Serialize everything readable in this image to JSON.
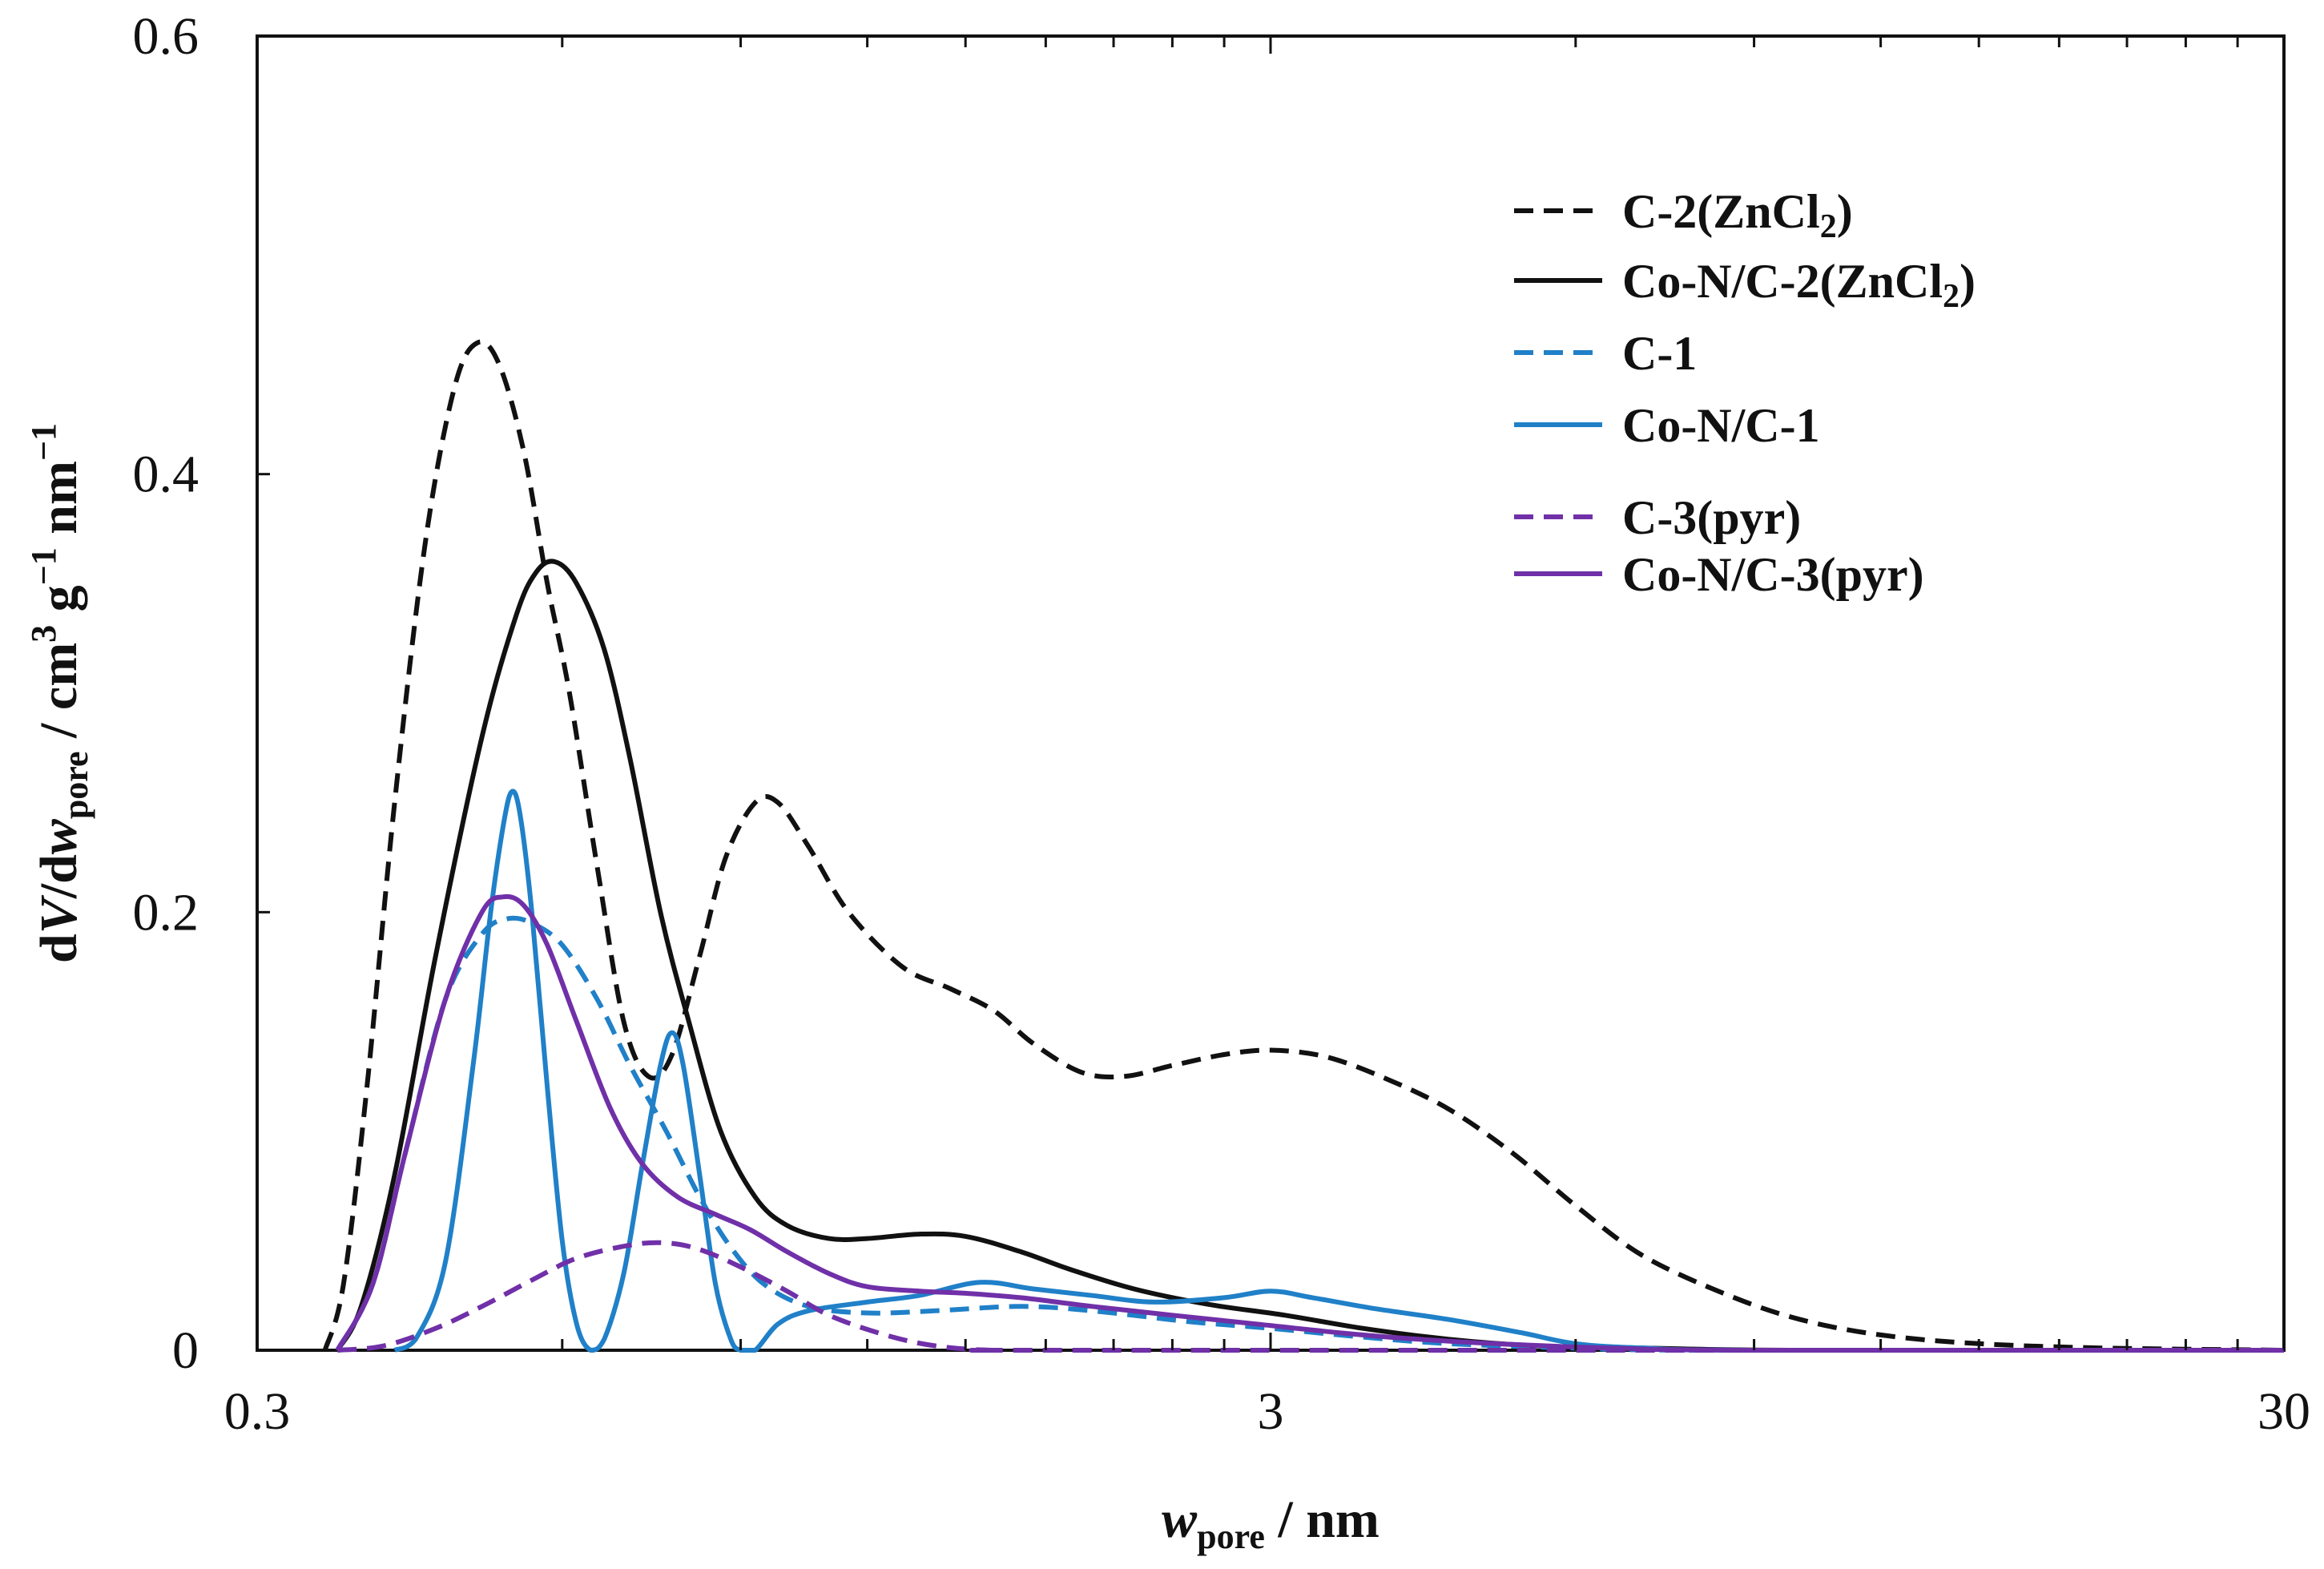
{
  "chart_data": {
    "type": "line",
    "title": "",
    "xscale": "log",
    "xlim": [
      0.3,
      30
    ],
    "ylim": [
      0,
      0.6
    ],
    "xticks": [
      {
        "value": 0.3,
        "label": "0.3"
      },
      {
        "value": 3,
        "label": "3"
      },
      {
        "value": 30,
        "label": "30"
      }
    ],
    "yticks": [
      {
        "value": 0,
        "label": "0"
      },
      {
        "value": 0.2,
        "label": "0.2"
      },
      {
        "value": 0.4,
        "label": "0.4"
      },
      {
        "value": 0.6,
        "label": "0.6"
      }
    ],
    "xlabel": {
      "main": "w",
      "sub": "pore",
      "rest": " / nm"
    },
    "ylabel": {
      "a": "d",
      "b": "V",
      "c": "/d",
      "d": "w",
      "sub": "pore",
      "e": " / cm",
      "sup1": "3",
      "f": " g",
      "sup2": "−1",
      "g": " nm",
      "sup3": "−1"
    },
    "legend_position": "top-right",
    "series": [
      {
        "name": "C-2(ZnCl2)",
        "label_main": "C-2(ZnCl",
        "label_sub": "2",
        "label_end": ")",
        "color": "#111111",
        "dashed": true,
        "points": [
          [
            0.35,
            0
          ],
          [
            0.365,
            0.03
          ],
          [
            0.385,
            0.12
          ],
          [
            0.41,
            0.25
          ],
          [
            0.44,
            0.37
          ],
          [
            0.47,
            0.44
          ],
          [
            0.495,
            0.46
          ],
          [
            0.52,
            0.45
          ],
          [
            0.55,
            0.41
          ],
          [
            0.58,
            0.35
          ],
          [
            0.61,
            0.3
          ],
          [
            0.65,
            0.22
          ],
          [
            0.69,
            0.15
          ],
          [
            0.73,
            0.125
          ],
          [
            0.77,
            0.135
          ],
          [
            0.82,
            0.18
          ],
          [
            0.87,
            0.225
          ],
          [
            0.93,
            0.25
          ],
          [
            0.98,
            0.25
          ],
          [
            1.05,
            0.23
          ],
          [
            1.15,
            0.2
          ],
          [
            1.3,
            0.175
          ],
          [
            1.45,
            0.165
          ],
          [
            1.6,
            0.155
          ],
          [
            1.75,
            0.14
          ],
          [
            1.95,
            0.127
          ],
          [
            2.15,
            0.125
          ],
          [
            2.4,
            0.13
          ],
          [
            2.7,
            0.135
          ],
          [
            3.0,
            0.137
          ],
          [
            3.4,
            0.134
          ],
          [
            3.9,
            0.124
          ],
          [
            4.5,
            0.11
          ],
          [
            5.2,
            0.09
          ],
          [
            6.0,
            0.066
          ],
          [
            7.0,
            0.043
          ],
          [
            8.5,
            0.025
          ],
          [
            10,
            0.014
          ],
          [
            12,
            0.007
          ],
          [
            15,
            0.003
          ],
          [
            20,
            0.001
          ],
          [
            30,
            0
          ]
        ]
      },
      {
        "name": "Co-N/C-2(ZnCl2)",
        "label_main": "Co-N/C-2(ZnCl",
        "label_sub": "2",
        "label_end": ")",
        "color": "#111111",
        "dashed": false,
        "points": [
          [
            0.36,
            0
          ],
          [
            0.38,
            0.02
          ],
          [
            0.41,
            0.08
          ],
          [
            0.45,
            0.18
          ],
          [
            0.5,
            0.28
          ],
          [
            0.54,
            0.335
          ],
          [
            0.565,
            0.355
          ],
          [
            0.59,
            0.36
          ],
          [
            0.62,
            0.35
          ],
          [
            0.66,
            0.32
          ],
          [
            0.7,
            0.27
          ],
          [
            0.75,
            0.2
          ],
          [
            0.8,
            0.15
          ],
          [
            0.86,
            0.1
          ],
          [
            0.93,
            0.07
          ],
          [
            1.0,
            0.057
          ],
          [
            1.1,
            0.051
          ],
          [
            1.2,
            0.051
          ],
          [
            1.35,
            0.053
          ],
          [
            1.5,
            0.052
          ],
          [
            1.7,
            0.045
          ],
          [
            1.9,
            0.037
          ],
          [
            2.2,
            0.028
          ],
          [
            2.6,
            0.021
          ],
          [
            3.1,
            0.016
          ],
          [
            3.7,
            0.01
          ],
          [
            4.5,
            0.005
          ],
          [
            5.5,
            0.002
          ],
          [
            7,
            0.001
          ],
          [
            10,
            0
          ],
          [
            30,
            0
          ]
        ]
      },
      {
        "name": "C-1",
        "label_main": "C-1",
        "label_sub": "",
        "label_end": "",
        "color": "#2080c8",
        "dashed": true,
        "points": [
          [
            0.36,
            0
          ],
          [
            0.39,
            0.03
          ],
          [
            0.42,
            0.09
          ],
          [
            0.46,
            0.16
          ],
          [
            0.5,
            0.19
          ],
          [
            0.53,
            0.197
          ],
          [
            0.56,
            0.195
          ],
          [
            0.6,
            0.185
          ],
          [
            0.65,
            0.16
          ],
          [
            0.7,
            0.13
          ],
          [
            0.76,
            0.1
          ],
          [
            0.82,
            0.07
          ],
          [
            0.88,
            0.047
          ],
          [
            0.95,
            0.03
          ],
          [
            1.05,
            0.02
          ],
          [
            1.2,
            0.017
          ],
          [
            1.4,
            0.018
          ],
          [
            1.7,
            0.02
          ],
          [
            2.0,
            0.018
          ],
          [
            2.5,
            0.013
          ],
          [
            3.0,
            0.01
          ],
          [
            3.7,
            0.006
          ],
          [
            4.5,
            0.003
          ],
          [
            6,
            0.001
          ],
          [
            8,
            0
          ],
          [
            30,
            0
          ]
        ]
      },
      {
        "name": "Co-N/C-1",
        "label_main": "Co-N/C-1",
        "label_sub": "",
        "label_end": "",
        "color": "#2080c8",
        "dashed": false,
        "points": [
          [
            0.41,
            0
          ],
          [
            0.43,
            0.005
          ],
          [
            0.46,
            0.04
          ],
          [
            0.49,
            0.13
          ],
          [
            0.51,
            0.2
          ],
          [
            0.525,
            0.24
          ],
          [
            0.535,
            0.255
          ],
          [
            0.545,
            0.245
          ],
          [
            0.56,
            0.2
          ],
          [
            0.58,
            0.12
          ],
          [
            0.6,
            0.05
          ],
          [
            0.62,
            0.012
          ],
          [
            0.64,
            0.0
          ],
          [
            0.66,
            0.005
          ],
          [
            0.69,
            0.035
          ],
          [
            0.72,
            0.085
          ],
          [
            0.75,
            0.13
          ],
          [
            0.77,
            0.145
          ],
          [
            0.79,
            0.13
          ],
          [
            0.82,
            0.08
          ],
          [
            0.85,
            0.03
          ],
          [
            0.88,
            0.005
          ],
          [
            0.9,
            0
          ],
          [
            0.93,
            0
          ],
          [
            0.98,
            0.012
          ],
          [
            1.05,
            0.018
          ],
          [
            1.2,
            0.022
          ],
          [
            1.35,
            0.025
          ],
          [
            1.55,
            0.031
          ],
          [
            1.75,
            0.028
          ],
          [
            2.0,
            0.025
          ],
          [
            2.3,
            0.022
          ],
          [
            2.7,
            0.024
          ],
          [
            3.0,
            0.027
          ],
          [
            3.3,
            0.024
          ],
          [
            3.8,
            0.019
          ],
          [
            4.5,
            0.014
          ],
          [
            5.3,
            0.008
          ],
          [
            6.0,
            0.003
          ],
          [
            7,
            0.001
          ],
          [
            9,
            0
          ],
          [
            30,
            0
          ]
        ]
      },
      {
        "name": "C-3(pyr)",
        "label_main": "C-3(pyr)",
        "label_sub": "",
        "label_end": "",
        "color": "#7030a8",
        "dashed": true,
        "points": [
          [
            0.36,
            0
          ],
          [
            0.4,
            0.002
          ],
          [
            0.45,
            0.01
          ],
          [
            0.5,
            0.02
          ],
          [
            0.56,
            0.032
          ],
          [
            0.62,
            0.042
          ],
          [
            0.7,
            0.048
          ],
          [
            0.76,
            0.049
          ],
          [
            0.82,
            0.046
          ],
          [
            0.9,
            0.038
          ],
          [
            1.0,
            0.027
          ],
          [
            1.1,
            0.016
          ],
          [
            1.25,
            0.007
          ],
          [
            1.4,
            0.002
          ],
          [
            1.6,
            0.0
          ],
          [
            2,
            0
          ],
          [
            30,
            0
          ]
        ]
      },
      {
        "name": "Co-N/C-3(pyr)",
        "label_main": "Co-N/C-3(pyr)",
        "label_sub": "",
        "label_end": "",
        "color": "#7030a8",
        "dashed": false,
        "points": [
          [
            0.36,
            0
          ],
          [
            0.39,
            0.03
          ],
          [
            0.42,
            0.09
          ],
          [
            0.46,
            0.16
          ],
          [
            0.5,
            0.2
          ],
          [
            0.525,
            0.207
          ],
          [
            0.55,
            0.203
          ],
          [
            0.58,
            0.185
          ],
          [
            0.62,
            0.15
          ],
          [
            0.67,
            0.11
          ],
          [
            0.72,
            0.085
          ],
          [
            0.78,
            0.07
          ],
          [
            0.85,
            0.062
          ],
          [
            0.92,
            0.055
          ],
          [
            1.0,
            0.045
          ],
          [
            1.1,
            0.035
          ],
          [
            1.2,
            0.029
          ],
          [
            1.35,
            0.027
          ],
          [
            1.5,
            0.026
          ],
          [
            1.7,
            0.024
          ],
          [
            2.0,
            0.02
          ],
          [
            2.4,
            0.016
          ],
          [
            2.9,
            0.012
          ],
          [
            3.5,
            0.008
          ],
          [
            4.2,
            0.005
          ],
          [
            5,
            0.003
          ],
          [
            6.5,
            0.001
          ],
          [
            9,
            0
          ],
          [
            30,
            0
          ]
        ]
      }
    ]
  }
}
